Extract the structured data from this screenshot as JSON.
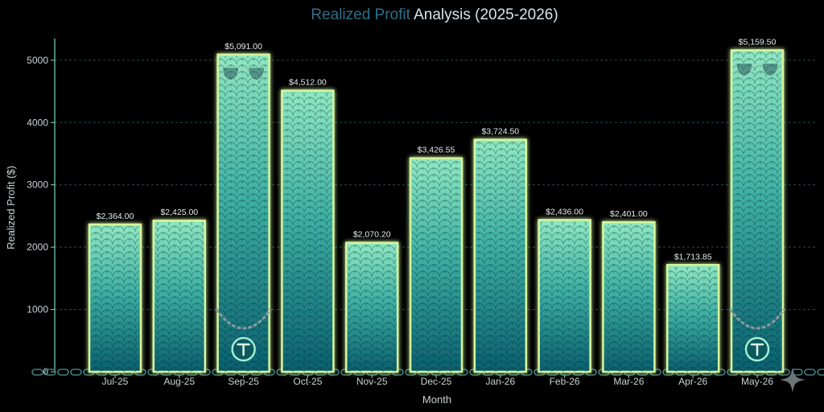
{
  "chart_data": {
    "type": "bar",
    "title_part1": "Realized Profit",
    "title_part2": " Analysis (2025-2026)",
    "xlabel": "Month",
    "ylabel": "Realized Profit ($)",
    "categories": [
      "Jul-25",
      "Aug-25",
      "Sep-25",
      "Oct-25",
      "Nov-25",
      "Dec-25",
      "Jan-26",
      "Feb-26",
      "Mar-26",
      "Apr-26",
      "May-26"
    ],
    "values": [
      2364.0,
      2425.0,
      5091.0,
      4512.0,
      2070.2,
      3426.55,
      3724.5,
      2436.0,
      2401.0,
      1713.85,
      5159.5
    ],
    "value_labels": [
      "$2,364.00",
      "$2,425.00",
      "$5,091.00",
      "$4,512.00",
      "$2,070.20",
      "$3,426.55",
      "$3,724.50",
      "$2,436.00",
      "$2,401.00",
      "$1,713.85",
      "$5,159.50"
    ],
    "ylim": [
      0,
      5450
    ],
    "yticks": [
      0,
      1000,
      2000,
      3000,
      4000,
      5000
    ],
    "grid": true,
    "legend": "none",
    "highlighted_categories": [
      "Sep-25",
      "May-26"
    ],
    "colors": {
      "background": "#000000",
      "bar_top": "#8fe8c2",
      "bar_bottom": "#0b6f7c",
      "bar_glow": "#d6f59a",
      "grid": "#1f4f52",
      "axis": "#7fd9c8"
    },
    "decorations": {
      "highlight_icons": [
        "sunglasses-icon",
        "chain-icon",
        "pendant-logo-icon"
      ],
      "corner_icon": "sparkle-icon"
    }
  }
}
